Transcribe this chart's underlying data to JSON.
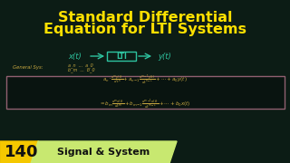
{
  "title_line1": "Standard Differential",
  "title_line2": "Equation for LTI Systems",
  "title_color": "#FFE000",
  "bg_color": "#0C1C15",
  "block_color": "#0C1C15",
  "block_border_color": "#2EC4A0",
  "arrow_color": "#2EC4A0",
  "eq_text_color": "#C8A840",
  "eq_border_color": "#906070",
  "diagram_x_text": "x(t)",
  "diagram_lti_text": "LTI",
  "diagram_y_text": "y(t)",
  "general_text": "General Sys:",
  "coeffs_text1": "a_n  ...  a_0",
  "coeffs_text2": "b_m  ...  b_0",
  "badge_number": "140",
  "badge_text": "Signal & System",
  "badge_bg_color": "#F5C800",
  "badge_text_bg": "#C8E870",
  "badge_number_color": "#111111",
  "badge_label_color": "#111111",
  "eq_bg_color": "#091410"
}
